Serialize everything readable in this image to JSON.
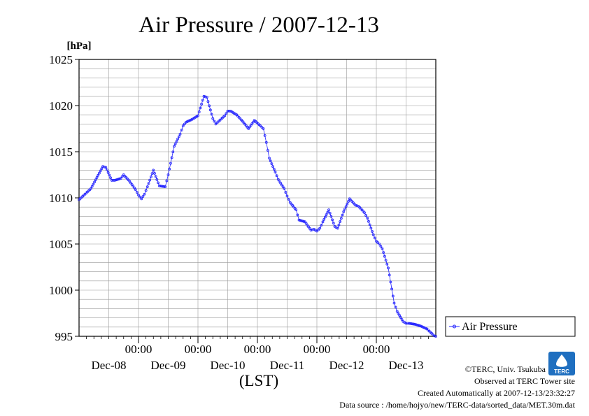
{
  "chart_data": {
    "type": "line",
    "title": "Air Pressure / 2007-12-13",
    "ylabel": "[hPa]",
    "xlabel": "(LST)",
    "ylim": [
      995,
      1025
    ],
    "xlim": [
      0,
      6
    ],
    "yticks": [
      995,
      1000,
      1005,
      1010,
      1015,
      1020,
      1025
    ],
    "xticks": [
      {
        "x": 1,
        "top": "00:00",
        "bottom": ""
      },
      {
        "x": 2,
        "top": "00:00",
        "bottom": ""
      },
      {
        "x": 3,
        "top": "00:00",
        "bottom": ""
      },
      {
        "x": 4,
        "top": "00:00",
        "bottom": ""
      },
      {
        "x": 5,
        "top": "00:00",
        "bottom": ""
      }
    ],
    "day_labels": [
      {
        "x": 0.5,
        "label": "Dec-08"
      },
      {
        "x": 1.5,
        "label": "Dec-09"
      },
      {
        "x": 2.5,
        "label": "Dec-10"
      },
      {
        "x": 3.5,
        "label": "Dec-11"
      },
      {
        "x": 4.5,
        "label": "Dec-12"
      },
      {
        "x": 5.5,
        "label": "Dec-13"
      }
    ],
    "grid": true,
    "legend_position": "right, outside plot",
    "series": [
      {
        "name": "Air Pressure",
        "color": "#2020ff",
        "marker": "circle",
        "x": [
          0.0,
          0.1,
          0.2,
          0.3,
          0.4,
          0.45,
          0.55,
          0.6,
          0.7,
          0.75,
          0.85,
          0.95,
          1.0,
          1.05,
          1.1,
          1.15,
          1.25,
          1.35,
          1.45,
          1.5,
          1.6,
          1.7,
          1.75,
          1.8,
          1.9,
          2.0,
          2.1,
          2.15,
          2.25,
          2.3,
          2.35,
          2.45,
          2.5,
          2.55,
          2.65,
          2.75,
          2.85,
          2.95,
          3.05,
          3.1,
          3.15,
          3.2,
          3.3,
          3.35,
          3.45,
          3.5,
          3.55,
          3.65,
          3.7,
          3.8,
          3.9,
          3.95,
          4.0,
          4.05,
          4.1,
          4.2,
          4.3,
          4.35,
          4.45,
          4.55,
          4.65,
          4.7,
          4.8,
          4.85,
          4.95,
          5.0,
          5.05,
          5.1,
          5.2,
          5.3,
          5.35,
          5.45,
          5.5,
          5.55,
          5.65,
          5.75,
          5.85,
          5.95,
          6.0
        ],
        "values": [
          1009.8,
          1010.4,
          1011.0,
          1012.2,
          1013.4,
          1013.3,
          1011.9,
          1011.9,
          1012.1,
          1012.5,
          1011.8,
          1010.9,
          1010.3,
          1009.9,
          1010.4,
          1011.2,
          1013.0,
          1011.3,
          1011.2,
          1012.5,
          1015.6,
          1016.9,
          1017.8,
          1018.2,
          1018.5,
          1018.9,
          1021.0,
          1020.9,
          1018.6,
          1018.0,
          1018.3,
          1018.9,
          1019.4,
          1019.4,
          1019.0,
          1018.3,
          1017.5,
          1018.4,
          1017.8,
          1017.5,
          1016.0,
          1014.3,
          1012.8,
          1012.0,
          1011.0,
          1010.2,
          1009.5,
          1008.7,
          1007.6,
          1007.4,
          1006.5,
          1006.6,
          1006.4,
          1006.7,
          1007.4,
          1008.7,
          1006.9,
          1006.7,
          1008.5,
          1009.9,
          1009.2,
          1009.1,
          1008.4,
          1007.8,
          1006.0,
          1005.3,
          1005.0,
          1004.5,
          1002.4,
          998.6,
          997.7,
          996.6,
          996.4,
          996.4,
          996.3,
          996.1,
          995.8,
          995.2,
          994.9
        ]
      }
    ]
  },
  "credits": {
    "copyright": "©TERC, Univ. Tsukuba",
    "observed": "Observed at TERC Tower site",
    "created": "Created Automatically at 2007-12-13/23:32:27",
    "source": "Data source : /home/hojyo/new/TERC-data/sorted_data/MET.30m.dat"
  },
  "logo": {
    "text": "TERC",
    "color": "#1f6fc0"
  }
}
